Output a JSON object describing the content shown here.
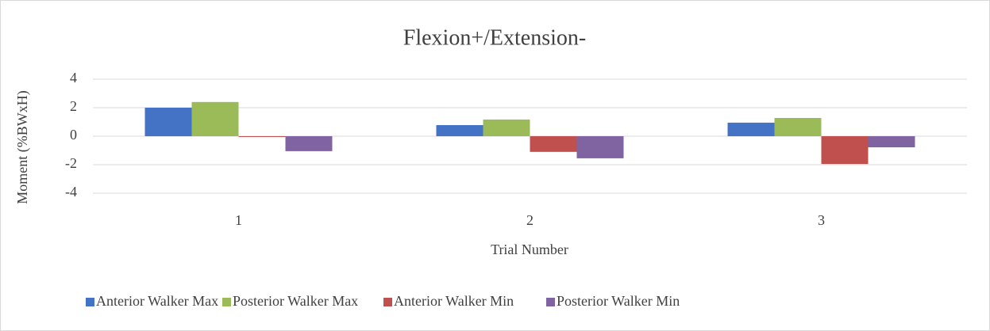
{
  "chart_data": {
    "type": "bar",
    "title": "Flexion+/Extension-",
    "x_label": "Trial Number",
    "y_label": "Moment (%BWxH)",
    "categories": [
      "1",
      "2",
      "3"
    ],
    "series": [
      {
        "name": "Anterior Walker Max",
        "color": "#4472c4",
        "values": [
          2.0,
          0.78,
          0.95
        ]
      },
      {
        "name": "Posterior Walker Max",
        "color": "#9bbb59",
        "values": [
          2.4,
          1.17,
          1.28
        ]
      },
      {
        "name": "Anterior Walker Min",
        "color": "#c0504d",
        "values": [
          -0.05,
          -1.1,
          -1.95
        ]
      },
      {
        "name": "Posterior Walker Min",
        "color": "#8064a2",
        "values": [
          -1.05,
          -1.55,
          -0.78
        ]
      }
    ],
    "ylim": [
      -4,
      4
    ],
    "yticks": [
      -4,
      -2,
      0,
      2,
      4
    ],
    "grid": true,
    "legend": "bottom"
  }
}
